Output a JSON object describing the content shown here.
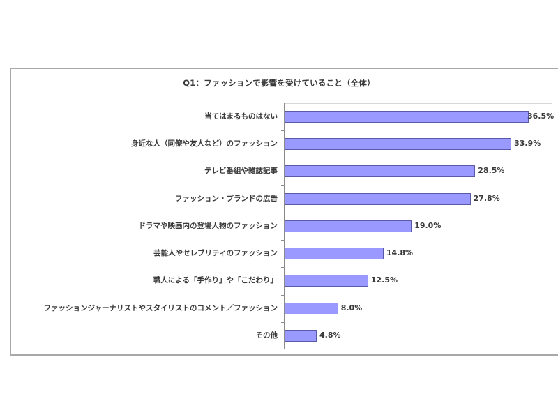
{
  "chart_data": {
    "type": "bar",
    "orientation": "horizontal",
    "title": "Q1：ファッションで影響を受けていること（全体）",
    "xlabel": "",
    "ylabel": "",
    "xlim": [
      0,
      40
    ],
    "grid": false,
    "legend": null,
    "categories": [
      "当てはまるものはない",
      "身近な人（同僚や友人など）のファッション",
      "テレビ番組や雑誌記事",
      "ファッション・ブランドの広告",
      "ドラマや映画内の登場人物のファッション",
      "芸能人やセレブリティのファッション",
      "職人による「手作り」や「こだわり」",
      "ファッションジャーナリストやスタイリストのコメント／ファッション",
      "その他"
    ],
    "values": [
      36.5,
      33.9,
      28.5,
      27.8,
      19.0,
      14.8,
      12.5,
      8.0,
      4.8
    ],
    "value_labels": [
      "36.5%",
      "33.9%",
      "28.5%",
      "27.8%",
      "19.0%",
      "14.8%",
      "12.5%",
      "8.0%",
      "4.8%"
    ],
    "unit": "%",
    "bar_color": "#9999ff",
    "bar_border_color": "#5a5aa8"
  }
}
